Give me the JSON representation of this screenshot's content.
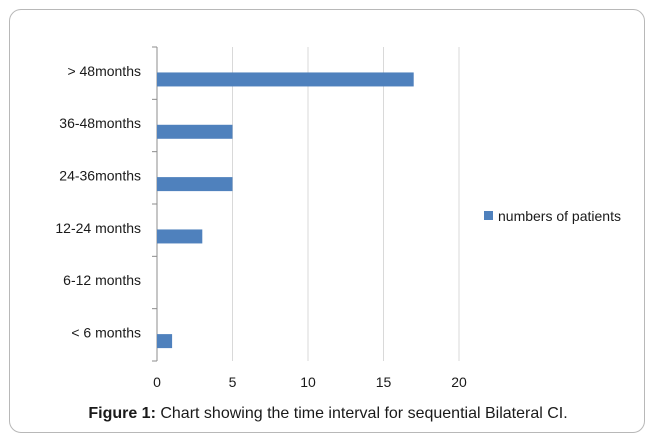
{
  "chart_data": {
    "type": "bar",
    "orientation": "horizontal",
    "categories": [
      "> 48months",
      "36-48months",
      "24-36months",
      "12-24 months",
      "6-12 months",
      "< 6 months"
    ],
    "series": [
      {
        "name": "numbers of patients",
        "values": [
          17,
          5,
          5,
          3,
          0,
          1
        ],
        "color": "#4f81bd"
      }
    ],
    "xlim": [
      0,
      20
    ],
    "xticks": [
      "0",
      "5",
      "10",
      "15",
      "20"
    ],
    "grid": true,
    "legend_position": "right"
  },
  "caption": {
    "label": "Figure 1:",
    "text": " Chart showing the time interval for sequential Bilateral CI."
  }
}
